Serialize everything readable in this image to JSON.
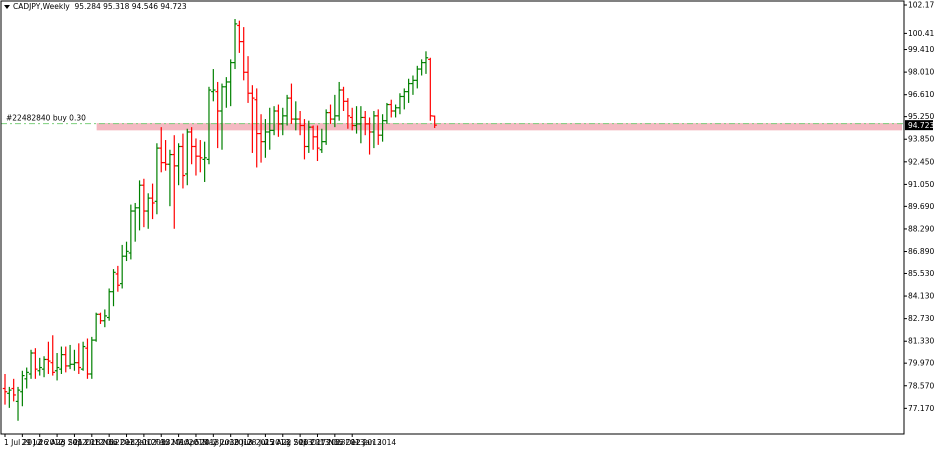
{
  "header": {
    "symbol_label": "CADJPY,Weekly",
    "ohlc_text": "95.284 95.318 94.546 94.723"
  },
  "order_line": {
    "label": "#22482840 buy 0.30",
    "price": 94.82
  },
  "current_price": {
    "label": "94.723",
    "value": 94.723
  },
  "colors": {
    "bull": "#008000",
    "bear": "#ff0000",
    "axis": "#000000",
    "order_line": "#7ccf7c",
    "price_tag_bg": "#000000",
    "price_tag_text": "#ffffff",
    "zone": "#f4b9c2"
  },
  "chart_data": {
    "type": "ohlc",
    "timeframe": "Weekly",
    "symbol": "CADJPY",
    "ylim": [
      76.2,
      102.17
    ],
    "y_ticks": [
      102.17,
      100.41,
      99.41,
      98.01,
      96.61,
      95.25,
      93.85,
      92.45,
      91.05,
      89.69,
      88.29,
      86.89,
      85.53,
      84.13,
      82.73,
      81.33,
      79.97,
      78.57,
      77.17
    ],
    "y_tick_labels": [
      "102.170",
      "100.410",
      "99.410",
      "98.010",
      "96.610",
      "95.250",
      "93.850",
      "92.450",
      "91.050",
      "89.690",
      "88.290",
      "86.890",
      "85.530",
      "84.130",
      "82.730",
      "81.330",
      "79.970",
      "78.570",
      "77.170"
    ],
    "x_labels": [
      "1 Jul 2012",
      "29 Jul 2012",
      "26 Aug 2012",
      "23 Sep 2012",
      "21 Oct 2012",
      "18 Nov 2012",
      "16 Dec 2012",
      "13 Jan 2013",
      "10 Feb 2013",
      "10 Mar 2013",
      "7 Apr 2013",
      "5 May 2013",
      "2 Jun 2013",
      "30 Jun 2013",
      "28 Jul 2013",
      "25 Aug 2013",
      "22 Sep 2013",
      "20 Oct 2013",
      "17 Nov 2013",
      "15 Dec 2013",
      "12 Jan 2014"
    ],
    "x_label_bar_index": [
      0,
      4,
      8,
      12,
      16,
      20,
      24,
      28,
      32,
      36,
      40,
      44,
      48,
      52,
      56,
      60,
      64,
      68,
      72,
      76,
      80
    ],
    "zone": {
      "y_low": 94.4,
      "y_high": 94.85,
      "from_bar": 21
    },
    "bars": [
      {
        "o": 78.4,
        "h": 79.3,
        "l": 77.4,
        "c": 78.2
      },
      {
        "o": 78.1,
        "h": 78.5,
        "l": 77.2,
        "c": 78.3
      },
      {
        "o": 78.4,
        "h": 79.0,
        "l": 77.6,
        "c": 78.0
      },
      {
        "o": 77.6,
        "h": 78.5,
        "l": 76.4,
        "c": 78.3
      },
      {
        "o": 78.2,
        "h": 79.5,
        "l": 77.3,
        "c": 79.2
      },
      {
        "o": 79.0,
        "h": 79.7,
        "l": 78.4,
        "c": 79.4
      },
      {
        "o": 79.3,
        "h": 80.8,
        "l": 79.0,
        "c": 80.6
      },
      {
        "o": 80.6,
        "h": 80.9,
        "l": 79.0,
        "c": 79.6
      },
      {
        "o": 79.5,
        "h": 80.3,
        "l": 79.2,
        "c": 79.7
      },
      {
        "o": 79.6,
        "h": 80.4,
        "l": 79.1,
        "c": 80.2
      },
      {
        "o": 80.2,
        "h": 81.3,
        "l": 79.3,
        "c": 80.1
      },
      {
        "o": 80.0,
        "h": 81.7,
        "l": 79.2,
        "c": 79.4
      },
      {
        "o": 79.5,
        "h": 80.6,
        "l": 78.9,
        "c": 79.7
      },
      {
        "o": 79.6,
        "h": 81.0,
        "l": 79.3,
        "c": 80.5
      },
      {
        "o": 80.5,
        "h": 81.0,
        "l": 79.4,
        "c": 79.8
      },
      {
        "o": 79.8,
        "h": 81.1,
        "l": 79.6,
        "c": 79.9
      },
      {
        "o": 79.9,
        "h": 80.8,
        "l": 79.5,
        "c": 80.0
      },
      {
        "o": 80.0,
        "h": 81.2,
        "l": 79.3,
        "c": 79.7
      },
      {
        "o": 79.6,
        "h": 81.3,
        "l": 79.5,
        "c": 81.0
      },
      {
        "o": 80.9,
        "h": 81.5,
        "l": 79.0,
        "c": 79.3
      },
      {
        "o": 79.3,
        "h": 81.6,
        "l": 79.0,
        "c": 81.4
      },
      {
        "o": 81.4,
        "h": 83.1,
        "l": 81.3,
        "c": 83.0
      },
      {
        "o": 83.0,
        "h": 83.1,
        "l": 82.4,
        "c": 82.6
      },
      {
        "o": 82.6,
        "h": 83.3,
        "l": 82.2,
        "c": 82.9
      },
      {
        "o": 82.8,
        "h": 84.6,
        "l": 82.6,
        "c": 84.4
      },
      {
        "o": 84.4,
        "h": 85.8,
        "l": 83.5,
        "c": 85.6
      },
      {
        "o": 85.5,
        "h": 86.0,
        "l": 84.4,
        "c": 84.8
      },
      {
        "o": 84.9,
        "h": 87.3,
        "l": 84.6,
        "c": 86.6
      },
      {
        "o": 86.6,
        "h": 87.5,
        "l": 86.3,
        "c": 86.9
      },
      {
        "o": 86.8,
        "h": 89.8,
        "l": 86.4,
        "c": 89.4
      },
      {
        "o": 89.4,
        "h": 89.9,
        "l": 87.5,
        "c": 89.6
      },
      {
        "o": 89.6,
        "h": 91.3,
        "l": 88.2,
        "c": 91.0
      },
      {
        "o": 91.0,
        "h": 91.4,
        "l": 88.4,
        "c": 89.4
      },
      {
        "o": 89.4,
        "h": 90.5,
        "l": 88.3,
        "c": 90.2
      },
      {
        "o": 90.2,
        "h": 91.1,
        "l": 88.9,
        "c": 89.9
      },
      {
        "o": 90.0,
        "h": 93.6,
        "l": 89.2,
        "c": 93.3
      },
      {
        "o": 93.3,
        "h": 94.6,
        "l": 91.8,
        "c": 92.4
      },
      {
        "o": 92.4,
        "h": 93.8,
        "l": 91.9,
        "c": 92.3
      },
      {
        "o": 92.3,
        "h": 93.2,
        "l": 89.7,
        "c": 92.9
      },
      {
        "o": 92.9,
        "h": 94.1,
        "l": 88.3,
        "c": 92.2
      },
      {
        "o": 92.2,
        "h": 93.6,
        "l": 91.0,
        "c": 93.4
      },
      {
        "o": 93.4,
        "h": 94.2,
        "l": 90.8,
        "c": 91.6
      },
      {
        "o": 91.7,
        "h": 94.5,
        "l": 91.0,
        "c": 94.3
      },
      {
        "o": 94.3,
        "h": 94.6,
        "l": 92.3,
        "c": 93.4
      },
      {
        "o": 93.4,
        "h": 93.9,
        "l": 91.6,
        "c": 92.8
      },
      {
        "o": 92.8,
        "h": 93.8,
        "l": 91.8,
        "c": 92.7
      },
      {
        "o": 92.6,
        "h": 93.7,
        "l": 91.2,
        "c": 92.7
      },
      {
        "o": 92.6,
        "h": 97.1,
        "l": 92.3,
        "c": 96.9
      },
      {
        "o": 96.8,
        "h": 98.2,
        "l": 96.2,
        "c": 96.9
      },
      {
        "o": 96.8,
        "h": 97.4,
        "l": 93.3,
        "c": 95.6
      },
      {
        "o": 95.6,
        "h": 97.3,
        "l": 93.2,
        "c": 97.1
      },
      {
        "o": 97.1,
        "h": 97.7,
        "l": 95.8,
        "c": 97.4
      },
      {
        "o": 97.4,
        "h": 98.8,
        "l": 95.9,
        "c": 98.6
      },
      {
        "o": 98.6,
        "h": 101.3,
        "l": 98.2,
        "c": 101.0
      },
      {
        "o": 100.9,
        "h": 101.2,
        "l": 99.2,
        "c": 99.9
      },
      {
        "o": 99.9,
        "h": 100.8,
        "l": 97.5,
        "c": 98.0
      },
      {
        "o": 98.0,
        "h": 99.0,
        "l": 96.1,
        "c": 96.7
      },
      {
        "o": 96.7,
        "h": 97.2,
        "l": 93.0,
        "c": 96.4
      },
      {
        "o": 96.3,
        "h": 97.0,
        "l": 92.1,
        "c": 94.2
      },
      {
        "o": 94.2,
        "h": 95.4,
        "l": 92.4,
        "c": 93.7
      },
      {
        "o": 93.7,
        "h": 95.1,
        "l": 92.7,
        "c": 94.3
      },
      {
        "o": 94.3,
        "h": 95.8,
        "l": 93.2,
        "c": 94.4
      },
      {
        "o": 94.4,
        "h": 95.9,
        "l": 94.1,
        "c": 95.6
      },
      {
        "o": 95.6,
        "h": 96.0,
        "l": 94.0,
        "c": 94.8
      },
      {
        "o": 94.8,
        "h": 95.8,
        "l": 94.1,
        "c": 95.3
      },
      {
        "o": 95.3,
        "h": 96.6,
        "l": 94.7,
        "c": 96.4
      },
      {
        "o": 96.4,
        "h": 97.3,
        "l": 94.8,
        "c": 95.1
      },
      {
        "o": 95.1,
        "h": 96.2,
        "l": 94.4,
        "c": 95.1
      },
      {
        "o": 95.1,
        "h": 95.6,
        "l": 94.1,
        "c": 94.7
      },
      {
        "o": 94.7,
        "h": 95.1,
        "l": 92.6,
        "c": 93.4
      },
      {
        "o": 93.4,
        "h": 95.0,
        "l": 93.0,
        "c": 94.6
      },
      {
        "o": 94.6,
        "h": 94.7,
        "l": 93.2,
        "c": 94.0
      },
      {
        "o": 94.0,
        "h": 94.7,
        "l": 92.5,
        "c": 93.3
      },
      {
        "o": 93.2,
        "h": 94.5,
        "l": 93.0,
        "c": 93.7
      },
      {
        "o": 93.7,
        "h": 95.7,
        "l": 93.5,
        "c": 95.5
      },
      {
        "o": 95.5,
        "h": 96.0,
        "l": 94.8,
        "c": 95.1
      },
      {
        "o": 95.1,
        "h": 96.6,
        "l": 94.6,
        "c": 95.3
      },
      {
        "o": 95.3,
        "h": 97.4,
        "l": 95.0,
        "c": 96.9
      },
      {
        "o": 96.9,
        "h": 97.1,
        "l": 95.6,
        "c": 96.2
      },
      {
        "o": 96.2,
        "h": 96.4,
        "l": 94.5,
        "c": 95.3
      },
      {
        "o": 95.2,
        "h": 95.8,
        "l": 94.4,
        "c": 94.7
      },
      {
        "o": 94.7,
        "h": 95.9,
        "l": 94.2,
        "c": 94.8
      },
      {
        "o": 94.8,
        "h": 95.9,
        "l": 93.6,
        "c": 95.2
      },
      {
        "o": 95.2,
        "h": 95.6,
        "l": 94.1,
        "c": 94.8
      },
      {
        "o": 94.8,
        "h": 95.2,
        "l": 92.9,
        "c": 94.3
      },
      {
        "o": 94.3,
        "h": 95.6,
        "l": 93.3,
        "c": 95.3
      },
      {
        "o": 95.3,
        "h": 95.7,
        "l": 93.5,
        "c": 94.1
      },
      {
        "o": 94.1,
        "h": 95.4,
        "l": 93.7,
        "c": 95.0
      },
      {
        "o": 95.0,
        "h": 96.1,
        "l": 94.8,
        "c": 96.0
      },
      {
        "o": 96.0,
        "h": 96.3,
        "l": 95.2,
        "c": 95.6
      },
      {
        "o": 95.6,
        "h": 96.0,
        "l": 95.2,
        "c": 95.8
      },
      {
        "o": 95.8,
        "h": 96.7,
        "l": 95.4,
        "c": 96.5
      },
      {
        "o": 96.5,
        "h": 97.0,
        "l": 95.7,
        "c": 96.8
      },
      {
        "o": 96.8,
        "h": 97.6,
        "l": 96.1,
        "c": 97.3
      },
      {
        "o": 97.3,
        "h": 97.8,
        "l": 96.6,
        "c": 97.5
      },
      {
        "o": 97.5,
        "h": 98.4,
        "l": 97.0,
        "c": 98.2
      },
      {
        "o": 98.2,
        "h": 98.8,
        "l": 97.8,
        "c": 98.6
      },
      {
        "o": 98.6,
        "h": 99.3,
        "l": 97.9,
        "c": 98.9
      },
      {
        "o": 98.8,
        "h": 98.9,
        "l": 95.0,
        "c": 95.3
      },
      {
        "o": 95.284,
        "h": 95.318,
        "l": 94.546,
        "c": 94.723
      }
    ]
  }
}
